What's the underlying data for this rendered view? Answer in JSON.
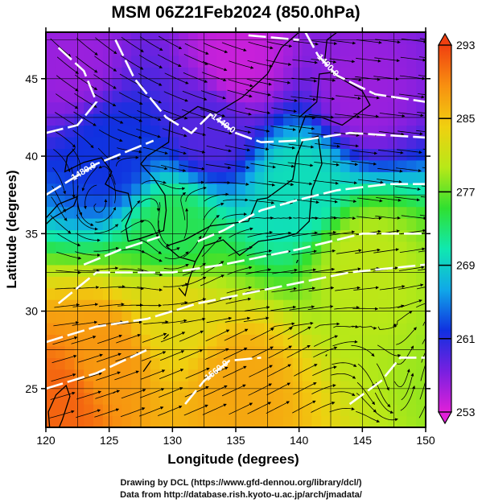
{
  "chart_data": {
    "type": "heatmap",
    "title": "MSM 06Z21Feb2024 (850.0hPa)",
    "xlabel": "Longitude (degrees)",
    "ylabel": "Latitude  (degrees)",
    "xlim": [
      120,
      150
    ],
    "ylim": [
      22.5,
      48
    ],
    "x_ticks": [
      120,
      125,
      130,
      135,
      140,
      145,
      150
    ],
    "y_ticks": [
      25,
      30,
      35,
      40,
      45
    ],
    "grid": true,
    "colorbar": {
      "range": [
        253,
        293
      ],
      "ticks": [
        253,
        261,
        269,
        277,
        285,
        293
      ],
      "colors": [
        "#e020d8",
        "#7820e0",
        "#1030e0",
        "#10a8e8",
        "#10e8b0",
        "#30e030",
        "#b8e818",
        "#f0d010",
        "#f89010",
        "#f04010"
      ]
    },
    "temperature_field": [
      {
        "lat": 46,
        "lon": 122,
        "value": 256
      },
      {
        "lat": 46,
        "lon": 135,
        "value": 254
      },
      {
        "lat": 44,
        "lon": 145,
        "value": 256
      },
      {
        "lat": 42,
        "lon": 133,
        "value": 259
      },
      {
        "lat": 40,
        "lon": 125,
        "value": 262
      },
      {
        "lat": 38,
        "lon": 140,
        "value": 270
      },
      {
        "lat": 35,
        "lon": 130,
        "value": 274
      },
      {
        "lat": 33,
        "lon": 145,
        "value": 280
      },
      {
        "lat": 30,
        "lon": 130,
        "value": 283
      },
      {
        "lat": 27,
        "lon": 125,
        "value": 288
      },
      {
        "lat": 25,
        "lon": 135,
        "value": 287
      },
      {
        "lat": 24,
        "lon": 121,
        "value": 291
      }
    ],
    "contours": [
      {
        "label": "1400.0",
        "points": [
          [
            140.5,
            48
          ],
          [
            141.5,
            46.5
          ],
          [
            143,
            45.2
          ],
          [
            146,
            44
          ],
          [
            150,
            43.5
          ]
        ]
      },
      {
        "label": "1440.0",
        "points": [
          [
            125.5,
            47.5
          ],
          [
            127,
            45
          ],
          [
            129.5,
            42.5
          ],
          [
            131.5,
            41.5
          ],
          [
            133,
            42.7
          ],
          [
            135,
            41.5
          ],
          [
            137,
            40.9
          ],
          [
            140,
            41
          ],
          [
            144,
            41.5
          ],
          [
            150,
            41.2
          ]
        ]
      },
      {
        "label": "1480.0",
        "points": [
          [
            120,
            37.5
          ],
          [
            122,
            38.5
          ],
          [
            124,
            39.5
          ],
          [
            127,
            40.5
          ],
          [
            128.5,
            41
          ]
        ]
      },
      {
        "label": "",
        "points": [
          [
            121,
            47
          ],
          [
            123,
            45.5
          ],
          [
            124,
            43.5
          ],
          [
            122.5,
            42
          ],
          [
            120,
            41.5
          ]
        ]
      },
      {
        "label": "",
        "points": [
          [
            136,
            47.8
          ],
          [
            140,
            47.5
          ]
        ]
      },
      {
        "label": "",
        "points": [
          [
            132,
            34.5
          ],
          [
            134,
            35.2
          ],
          [
            137,
            36.5
          ],
          [
            140,
            37.2
          ],
          [
            143,
            37.8
          ],
          [
            147,
            38.2
          ],
          [
            150,
            38.2
          ]
        ]
      },
      {
        "label": "",
        "points": [
          [
            123,
            33
          ],
          [
            126,
            34
          ],
          [
            129,
            34.8
          ]
        ]
      },
      {
        "label": "",
        "points": [
          [
            121,
            30.5
          ],
          [
            124,
            32.5
          ],
          [
            127,
            32.5
          ],
          [
            130,
            32.5
          ],
          [
            134,
            33
          ],
          [
            140,
            34
          ],
          [
            145,
            35
          ],
          [
            150,
            35
          ]
        ]
      },
      {
        "label": "",
        "points": [
          [
            120,
            28
          ],
          [
            124,
            29
          ],
          [
            128,
            29.5
          ],
          [
            132,
            30.5
          ],
          [
            138,
            31.5
          ],
          [
            144,
            32.5
          ],
          [
            150,
            33
          ]
        ]
      },
      {
        "label": "1560.0",
        "points": [
          [
            131,
            24
          ],
          [
            132.5,
            25.5
          ],
          [
            134.5,
            26.8
          ],
          [
            137,
            27
          ]
        ]
      },
      {
        "label": "",
        "points": [
          [
            120,
            25
          ],
          [
            124,
            26
          ],
          [
            128,
            27.5
          ]
        ]
      },
      {
        "label": "",
        "points": [
          [
            144,
            24
          ],
          [
            146.5,
            25.5
          ],
          [
            148,
            27
          ],
          [
            150,
            27
          ]
        ]
      }
    ]
  },
  "credits": {
    "line1": "Drawing by DCL (https://www.gfd-dennou.org/library/dcl/)",
    "line2": "Data from http://database.rish.kyoto-u.ac.jp/arch/jmadata/"
  }
}
